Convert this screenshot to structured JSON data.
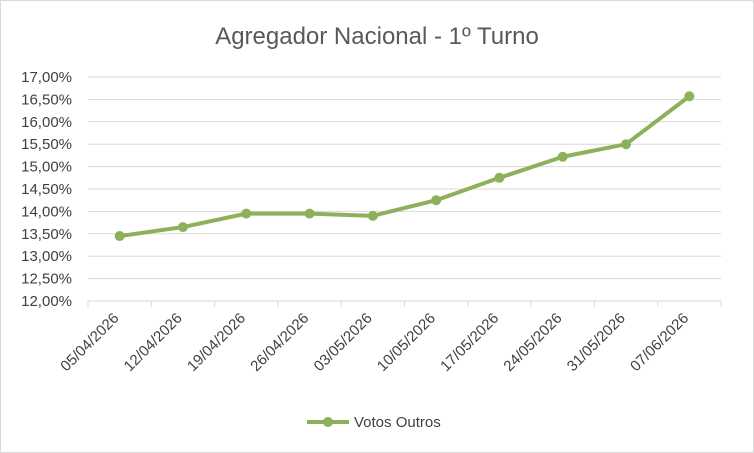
{
  "chart_data": {
    "type": "line",
    "title": "Agregador Nacional - 1º Turno",
    "xlabel": "",
    "ylabel": "",
    "categories": [
      "05/04/2026",
      "12/04/2026",
      "19/04/2026",
      "26/04/2026",
      "03/05/2026",
      "10/05/2026",
      "17/05/2026",
      "24/05/2026",
      "31/05/2026",
      "07/06/2026"
    ],
    "series": [
      {
        "name": "Votos Outros",
        "values": [
          13.45,
          13.65,
          13.95,
          13.95,
          13.9,
          14.25,
          14.75,
          15.22,
          15.5,
          16.57
        ],
        "color": "#8db15a"
      }
    ],
    "ylim": [
      12.0,
      17.0
    ],
    "ytick_step": 0.5,
    "ytick_labels": [
      "12,00%",
      "12,50%",
      "13,00%",
      "13,50%",
      "14,00%",
      "14,50%",
      "15,00%",
      "15,50%",
      "16,00%",
      "16,50%",
      "17,00%"
    ],
    "grid": true,
    "legend": "bottom",
    "gridline_color": "#d9d9d9"
  }
}
